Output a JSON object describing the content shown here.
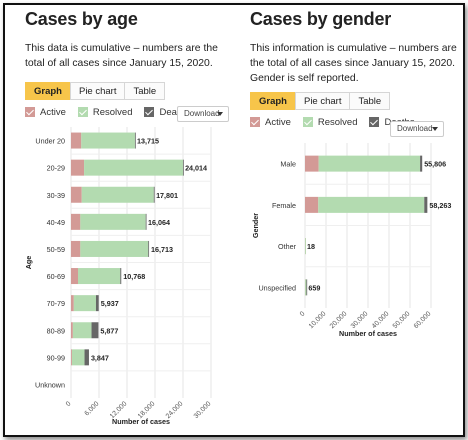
{
  "colors": {
    "active": "#d39a96",
    "resolved": "#b3dbb0",
    "deaths": "#666666",
    "tab_active": "#f7c54a",
    "grid": "#e6e6e6"
  },
  "age_panel": {
    "title": "Cases by age",
    "description": "This data is cumulative – numbers are the total of all cases since January 15, 2020.",
    "tabs": [
      {
        "label": "Graph",
        "active": true
      },
      {
        "label": "Pie chart",
        "active": false
      },
      {
        "label": "Table",
        "active": false
      }
    ],
    "legend": [
      {
        "label": "Active",
        "color_key": "active"
      },
      {
        "label": "Resolved",
        "color_key": "resolved"
      },
      {
        "label": "Deaths",
        "color_key": "deaths"
      }
    ],
    "download_label": "Download"
  },
  "gender_panel": {
    "title": "Cases by gender",
    "description": "This information is cumulative – numbers are the total of all cases since January 15, 2020. Gender is self reported.",
    "tabs": [
      {
        "label": "Graph",
        "active": true
      },
      {
        "label": "Pie chart",
        "active": false
      },
      {
        "label": "Table",
        "active": false
      }
    ],
    "legend": [
      {
        "label": "Active",
        "color_key": "active"
      },
      {
        "label": "Resolved",
        "color_key": "resolved"
      },
      {
        "label": "Deaths",
        "color_key": "deaths"
      }
    ],
    "download_label": "Download"
  },
  "chart_data": [
    {
      "type": "bar",
      "orientation": "horizontal",
      "stacked": true,
      "title": "",
      "ylabel": "Age",
      "xlabel": "Number of cases",
      "xlim": [
        0,
        30000
      ],
      "xticks": [
        0,
        6000,
        12000,
        18000,
        24000,
        30000
      ],
      "xtick_labels": [
        "0",
        "6,000",
        "12,000",
        "18,000",
        "24,000",
        "30,000"
      ],
      "categories": [
        "Under 20",
        "20-29",
        "30-39",
        "40-49",
        "50-59",
        "60-69",
        "70-79",
        "80-89",
        "90-99",
        "Unknown"
      ],
      "totals": [
        13715,
        24014,
        17801,
        16064,
        16713,
        10768,
        5937,
        5877,
        3847,
        null
      ],
      "total_labels": [
        "13,715",
        "24,014",
        "17,801",
        "16,064",
        "16,713",
        "10,768",
        "5,937",
        "5,877",
        "3,847",
        ""
      ],
      "series": [
        {
          "name": "Active",
          "values": [
            2200,
            2800,
            2300,
            2000,
            2000,
            1500,
            600,
            400,
            200,
            0
          ]
        },
        {
          "name": "Resolved",
          "values": [
            11505,
            21195,
            15441,
            14009,
            14553,
            9060,
            4750,
            4000,
            2700,
            0
          ]
        },
        {
          "name": "Deaths",
          "values": [
            10,
            19,
            60,
            55,
            160,
            208,
            587,
            1477,
            947,
            0
          ]
        }
      ],
      "grid": true,
      "legend": "top-left"
    },
    {
      "type": "bar",
      "orientation": "horizontal",
      "stacked": true,
      "title": "",
      "ylabel": "Gender",
      "xlabel": "Number of cases",
      "xlim": [
        0,
        60000
      ],
      "xticks": [
        0,
        10000,
        20000,
        30000,
        40000,
        50000,
        60000
      ],
      "xtick_labels": [
        "0",
        "10,000",
        "20,000",
        "30,000",
        "40,000",
        "50,000",
        "60,000"
      ],
      "categories": [
        "Male",
        "Female",
        "Other",
        "Unspecified"
      ],
      "totals": [
        55806,
        58263,
        18,
        659
      ],
      "total_labels": [
        "55,806",
        "58,263",
        "18",
        "659"
      ],
      "series": [
        {
          "name": "Active",
          "values": [
            6500,
            6300,
            2,
            50
          ]
        },
        {
          "name": "Resolved",
          "values": [
            48300,
            50500,
            16,
            600
          ]
        },
        {
          "name": "Deaths",
          "values": [
            1006,
            1463,
            0,
            9
          ]
        }
      ],
      "grid": true,
      "legend": "top-left"
    }
  ]
}
